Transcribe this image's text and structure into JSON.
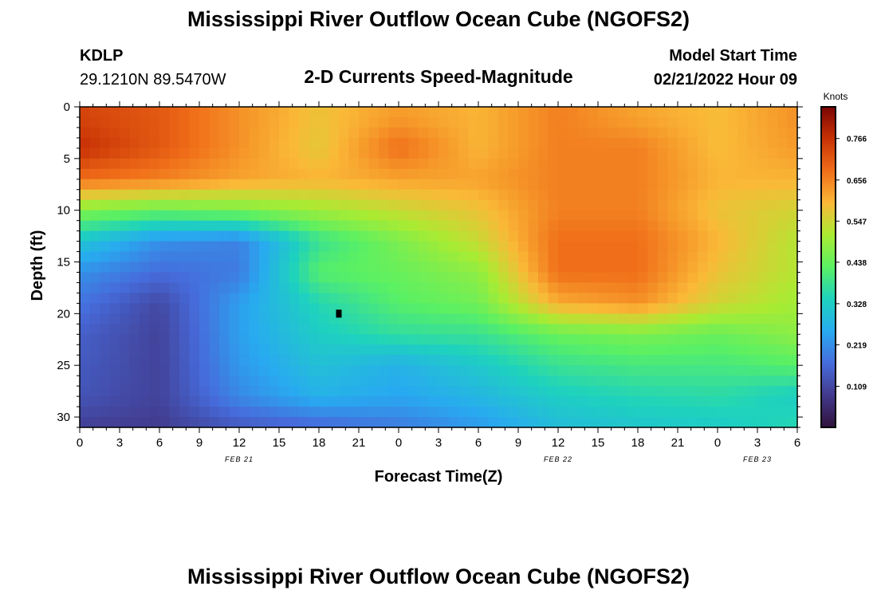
{
  "header": {
    "title": "Mississippi River Outflow Ocean Cube (NGOFS2)",
    "station_id": "KDLP",
    "station_coords": "29.1210N  89.5470W",
    "plot_title": "2-D Currents Speed-Magnitude",
    "model_label": "Model Start Time",
    "model_time": "02/21/2022 Hour 09"
  },
  "footer": {
    "title": "Mississippi River Outflow Ocean Cube (NGOFS2)"
  },
  "chart_data": {
    "type": "heatmap",
    "title": "2-D Currents Speed-Magnitude",
    "xlabel": "Forecast Time(Z)",
    "ylabel": "Depth (ft)",
    "x_tick_labels": [
      "0",
      "3",
      "6",
      "9",
      "12",
      "15",
      "18",
      "21",
      "0",
      "3",
      "6",
      "9",
      "12",
      "15",
      "18",
      "21",
      "0",
      "3",
      "6"
    ],
    "x_date_labels": [
      {
        "label": "FEB 21",
        "tick_index": 4
      },
      {
        "label": "FEB 22",
        "tick_index": 12
      },
      {
        "label": "FEB 23",
        "tick_index": 17
      }
    ],
    "y_ticks": [
      0,
      5,
      10,
      15,
      20,
      25,
      30
    ],
    "ylim": [
      31,
      0
    ],
    "colorbar": {
      "label": "Knots",
      "ticks": [
        "0.109",
        "0.219",
        "0.328",
        "0.438",
        "0.547",
        "0.656",
        "0.766"
      ],
      "min": 0.0,
      "max": 0.85
    },
    "time_hours": [
      0,
      6,
      12,
      18,
      24,
      30,
      36,
      42,
      48,
      54
    ],
    "depths_ft": [
      1,
      4,
      7,
      10,
      13,
      16,
      19,
      22,
      25,
      28,
      30.5
    ],
    "values_knots": [
      [
        0.74,
        0.71,
        0.64,
        0.58,
        0.63,
        0.6,
        0.66,
        0.62,
        0.59,
        0.64
      ],
      [
        0.77,
        0.71,
        0.64,
        0.57,
        0.68,
        0.6,
        0.66,
        0.66,
        0.59,
        0.63
      ],
      [
        0.68,
        0.66,
        0.62,
        0.6,
        0.62,
        0.62,
        0.66,
        0.66,
        0.6,
        0.6
      ],
      [
        0.47,
        0.44,
        0.46,
        0.5,
        0.54,
        0.58,
        0.66,
        0.66,
        0.58,
        0.55
      ],
      [
        0.31,
        0.22,
        0.2,
        0.38,
        0.46,
        0.54,
        0.68,
        0.68,
        0.6,
        0.52
      ],
      [
        0.22,
        0.17,
        0.19,
        0.42,
        0.44,
        0.48,
        0.68,
        0.68,
        0.58,
        0.52
      ],
      [
        0.18,
        0.11,
        0.24,
        0.35,
        0.42,
        0.45,
        0.61,
        0.64,
        0.55,
        0.5
      ],
      [
        0.15,
        0.1,
        0.24,
        0.33,
        0.37,
        0.38,
        0.44,
        0.46,
        0.44,
        0.48
      ],
      [
        0.14,
        0.1,
        0.23,
        0.3,
        0.27,
        0.32,
        0.38,
        0.4,
        0.4,
        0.42
      ],
      [
        0.13,
        0.1,
        0.21,
        0.27,
        0.25,
        0.28,
        0.33,
        0.35,
        0.36,
        0.33
      ],
      [
        0.1,
        0.09,
        0.15,
        0.18,
        0.2,
        0.24,
        0.3,
        0.32,
        0.33,
        0.35
      ]
    ],
    "marker": {
      "time_hours": 19.5,
      "depth_ft": 20
    }
  }
}
